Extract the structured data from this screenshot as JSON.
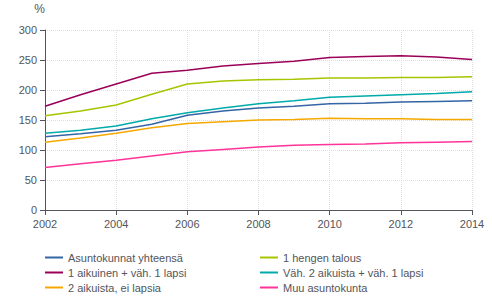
{
  "chart_data": {
    "type": "line",
    "ylabel": "%",
    "x": [
      2002,
      2003,
      2004,
      2005,
      2006,
      2007,
      2008,
      2009,
      2010,
      2011,
      2012,
      2013,
      2014
    ],
    "series": [
      {
        "name": "Asuntokunnat yhteensä",
        "color": "#3465A4",
        "values": [
          122,
          127,
          133,
          143,
          158,
          165,
          170,
          173,
          177,
          178,
          180,
          181,
          182
        ]
      },
      {
        "name": "1 aikuinen + väh. 1 lapsi",
        "color": "#9B0059",
        "values": [
          173,
          192,
          210,
          228,
          233,
          240,
          244,
          248,
          254,
          256,
          257,
          255,
          251
        ]
      },
      {
        "name": "2 aikuista, ei lapsia",
        "color": "#F5A800",
        "values": [
          113,
          120,
          128,
          137,
          144,
          147,
          150,
          151,
          153,
          152,
          152,
          151,
          151
        ]
      },
      {
        "name": "1 hengen talous",
        "color": "#A8C400",
        "values": [
          157,
          165,
          175,
          193,
          210,
          215,
          217,
          218,
          220,
          220,
          221,
          221,
          222
        ]
      },
      {
        "name": "Väh. 2 aikuista + väh. 1 lapsi",
        "color": "#00AAAA",
        "values": [
          128,
          133,
          140,
          152,
          162,
          170,
          177,
          182,
          188,
          190,
          192,
          194,
          197
        ]
      },
      {
        "name": "Muu asuntokunta",
        "color": "#FF3399",
        "values": [
          71,
          77,
          83,
          90,
          97,
          101,
          105,
          108,
          109,
          110,
          112,
          113,
          114
        ]
      }
    ],
    "xlim": [
      2002,
      2014
    ],
    "xticks": [
      2002,
      2004,
      2006,
      2008,
      2010,
      2012,
      2014
    ],
    "ylim": [
      0,
      300
    ],
    "yticks": [
      0,
      50,
      100,
      150,
      200,
      250,
      300
    ],
    "grid": true,
    "legend": "bottom"
  }
}
